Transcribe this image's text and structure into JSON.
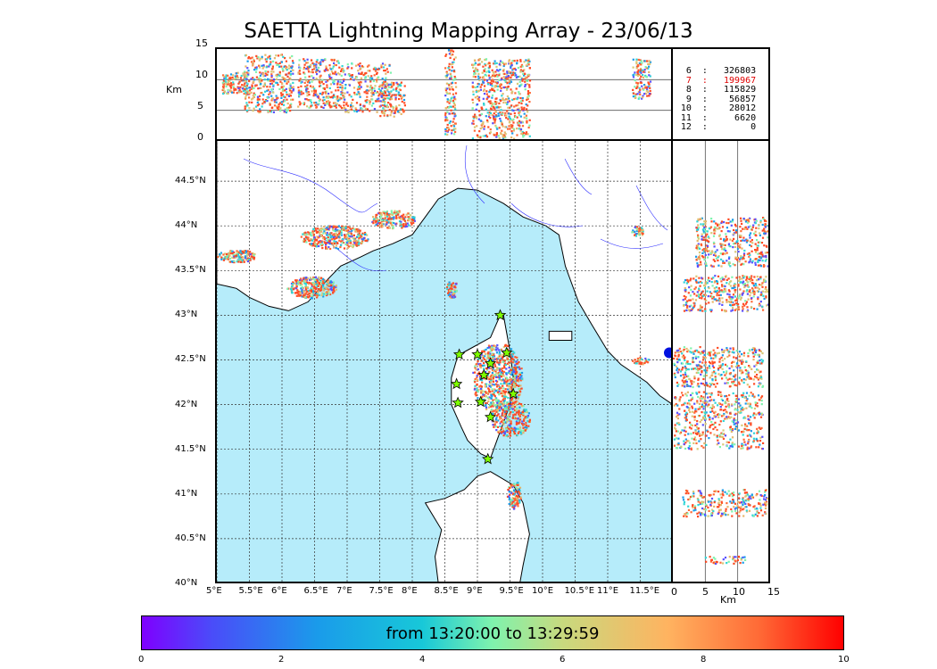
{
  "title": "SAETTA Lightning Mapping Array - 23/06/13",
  "altitude_panel": {
    "unit_label": "Km",
    "y_ticks": [
      "0",
      "5",
      "10",
      "15"
    ]
  },
  "side_panel": {
    "unit_label": "Km",
    "x_ticks": [
      "0",
      "5",
      "10",
      "15"
    ]
  },
  "map": {
    "lon_ticks": [
      "5°E",
      "5.5°E",
      "6°E",
      "6.5°E",
      "7°E",
      "7.5°E",
      "8°E",
      "8.5°E",
      "9°E",
      "9.5°E",
      "10°E",
      "10.5°E",
      "11°E",
      "11.5°E"
    ],
    "lat_ticks": [
      "40°N",
      "40.5°N",
      "41°N",
      "41.5°N",
      "42°N",
      "42.5°N",
      "43°N",
      "43.5°N",
      "44°N",
      "44.5°N"
    ],
    "sea_color": "#b6ecfa",
    "land_color": "#ffffff",
    "station_marker_color": "#7fff00",
    "stations": [
      {
        "lon": 9.35,
        "lat": 43.0
      },
      {
        "lon": 8.72,
        "lat": 42.56
      },
      {
        "lon": 9.0,
        "lat": 42.56
      },
      {
        "lon": 9.45,
        "lat": 42.58
      },
      {
        "lon": 9.2,
        "lat": 42.46
      },
      {
        "lon": 9.1,
        "lat": 42.33
      },
      {
        "lon": 8.68,
        "lat": 42.23
      },
      {
        "lon": 8.7,
        "lat": 42.02
      },
      {
        "lon": 9.05,
        "lat": 42.03
      },
      {
        "lon": 9.2,
        "lat": 41.86
      },
      {
        "lon": 9.55,
        "lat": 42.12
      },
      {
        "lon": 9.16,
        "lat": 41.39
      }
    ]
  },
  "stats": [
    {
      "label": " 6  :   326803",
      "color": "#000000"
    },
    {
      "label": " 7  :   199967",
      "color": "#e00000"
    },
    {
      "label": " 8  :   115829",
      "color": "#000000"
    },
    {
      "label": " 9  :    56857",
      "color": "#000000"
    },
    {
      "label": "10  :    28012",
      "color": "#000000"
    },
    {
      "label": "11  :     6620",
      "color": "#000000"
    },
    {
      "label": "12  :        0",
      "color": "#000000"
    }
  ],
  "colorbar": {
    "label": "from 13:20:00 to 13:29:59",
    "ticks": [
      "0",
      "2",
      "4",
      "6",
      "8",
      "10"
    ],
    "range": [
      0,
      10
    ]
  }
}
